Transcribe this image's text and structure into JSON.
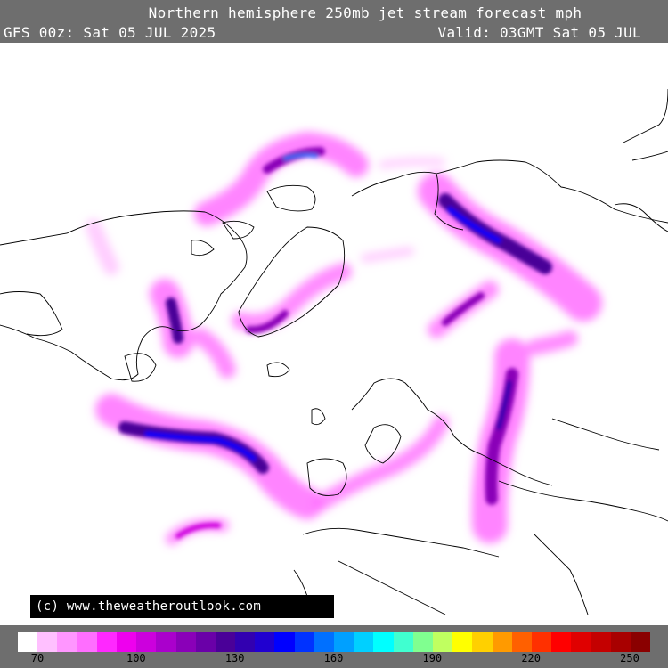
{
  "header": {
    "title": "Northern hemisphere 250mb jet stream forecast mph",
    "run": "GFS 00z: Sat 05 JUL 2025",
    "valid": "Valid: 03GMT Sat 05 JUL"
  },
  "credit": "(c) www.theweatheroutlook.com",
  "legend": {
    "colors": [
      "#ffffff",
      "#ffc0ff",
      "#ff96ff",
      "#ff6eff",
      "#ff28ff",
      "#ee00ee",
      "#cc00dd",
      "#aa00cc",
      "#8a00b8",
      "#6a00a8",
      "#4a0098",
      "#3200b0",
      "#2000d0",
      "#0000ff",
      "#0032ff",
      "#0070ff",
      "#00a0ff",
      "#00d0ff",
      "#00ffff",
      "#40ffd0",
      "#80ff90",
      "#c0ff60",
      "#ffff00",
      "#ffd000",
      "#ff9a00",
      "#ff6000",
      "#ff3000",
      "#ff0000",
      "#e00000",
      "#c40000",
      "#a80000",
      "#8a0000"
    ],
    "ticks": [
      {
        "label": "70",
        "value": 70
      },
      {
        "label": "100",
        "value": 100
      },
      {
        "label": "130",
        "value": 130
      },
      {
        "label": "160",
        "value": 160
      },
      {
        "label": "190",
        "value": 190
      },
      {
        "label": "220",
        "value": 220
      },
      {
        "label": "250",
        "value": 250
      }
    ]
  }
}
